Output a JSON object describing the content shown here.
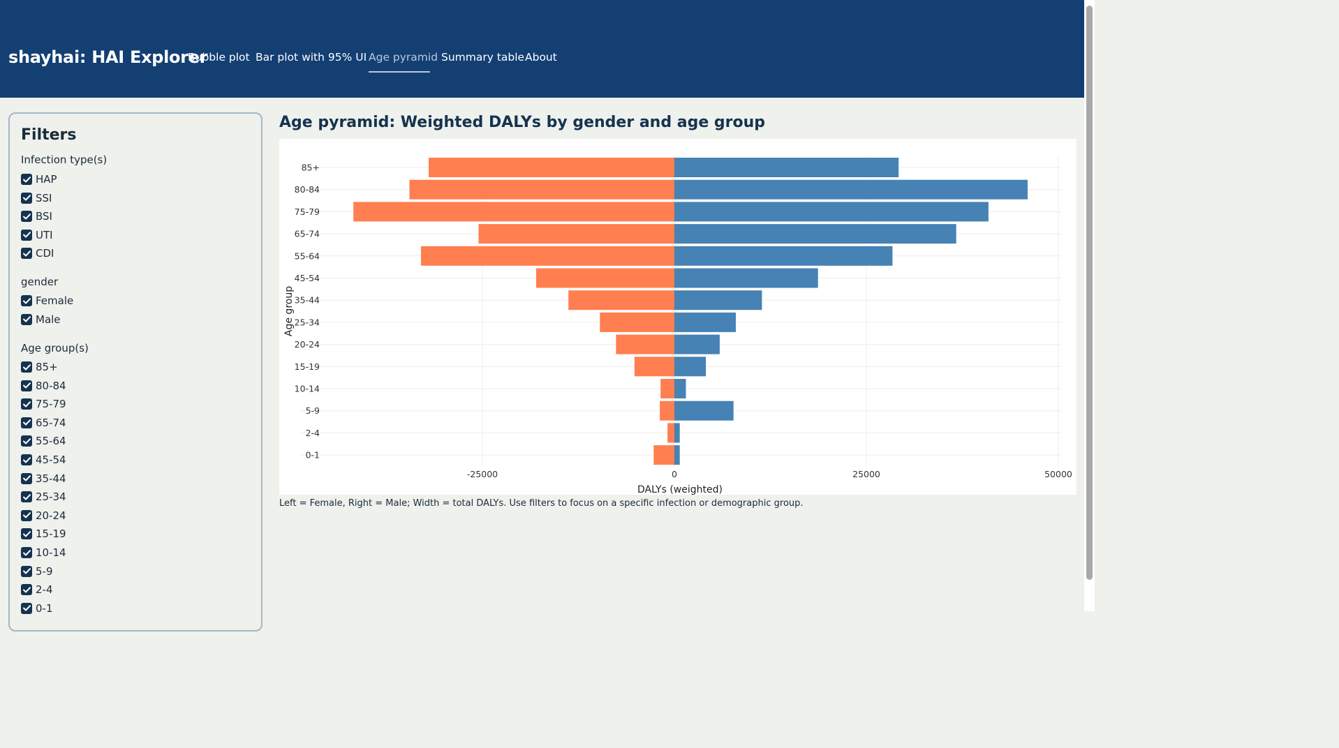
{
  "app": {
    "brand": "shayhai: HAI Explorer"
  },
  "nav": {
    "items": [
      {
        "label": "Bubble plot",
        "active": false
      },
      {
        "label": "Bar plot with 95% UI",
        "active": false
      },
      {
        "label": "Age pyramid",
        "active": true
      },
      {
        "label": "Summary table",
        "active": false
      },
      {
        "label": "About",
        "active": false
      }
    ]
  },
  "filters": {
    "title": "Filters",
    "infection": {
      "label": "Infection type(s)",
      "options": [
        {
          "label": "HAP",
          "checked": true
        },
        {
          "label": "SSI",
          "checked": true
        },
        {
          "label": "BSI",
          "checked": true
        },
        {
          "label": "UTI",
          "checked": true
        },
        {
          "label": "CDI",
          "checked": true
        }
      ]
    },
    "gender": {
      "label": "gender",
      "options": [
        {
          "label": "Female",
          "checked": true
        },
        {
          "label": "Male",
          "checked": true
        }
      ]
    },
    "age": {
      "label": "Age group(s)",
      "options": [
        {
          "label": "85+",
          "checked": true
        },
        {
          "label": "80-84",
          "checked": true
        },
        {
          "label": "75-79",
          "checked": true
        },
        {
          "label": "65-74",
          "checked": true
        },
        {
          "label": "55-64",
          "checked": true
        },
        {
          "label": "45-54",
          "checked": true
        },
        {
          "label": "35-44",
          "checked": true
        },
        {
          "label": "25-34",
          "checked": true
        },
        {
          "label": "20-24",
          "checked": true
        },
        {
          "label": "15-19",
          "checked": true
        },
        {
          "label": "10-14",
          "checked": true
        },
        {
          "label": "5-9",
          "checked": true
        },
        {
          "label": "2-4",
          "checked": true
        },
        {
          "label": "0-1",
          "checked": true
        }
      ]
    }
  },
  "main": {
    "title": "Age pyramid: Weighted DALYs by gender and age group",
    "caption": "Left = Female, Right = Male; Width = total DALYs. Use filters to focus on a specific infection or demographic group."
  },
  "colors": {
    "female": "#ff7f50",
    "male": "#4682b4",
    "navbar": "#133f73"
  },
  "chart_data": {
    "type": "bar",
    "orientation": "horizontal",
    "categories": [
      "85+",
      "80-84",
      "75-79",
      "65-74",
      "55-64",
      "45-54",
      "35-44",
      "25-34",
      "20-24",
      "15-19",
      "10-14",
      "5-9",
      "2-4",
      "0-1"
    ],
    "series": [
      {
        "values": [
          -32000,
          -34500,
          -41800,
          -25500,
          -33000,
          -18000,
          -13800,
          -9700,
          -7600,
          -5200,
          -1800,
          -1900,
          -900,
          -2700
        ]
      },
      {
        "values": [
          29200,
          46000,
          40900,
          36700,
          28400,
          18700,
          11400,
          8000,
          5900,
          4100,
          1500,
          7700,
          700,
          700
        ]
      }
    ],
    "xlabel": "DALYs (weighted)",
    "ylabel": "Age group",
    "xticks": [
      -25000,
      0,
      25000,
      50000
    ],
    "xlim": [
      -51000,
      50000
    ],
    "grid": true,
    "legend": "none"
  }
}
